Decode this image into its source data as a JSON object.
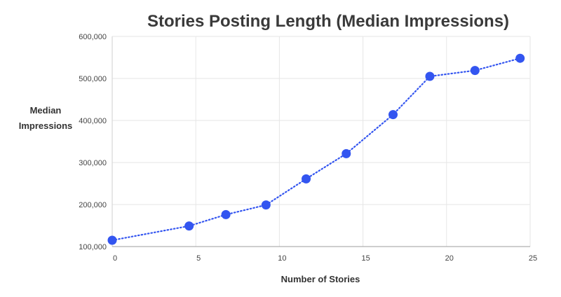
{
  "chart_data": {
    "type": "line",
    "title": "Stories Posting Length (Median Impressions)",
    "xlabel": "Number of Stories",
    "ylabel": [
      "Median",
      "Impressions"
    ],
    "xlim": [
      0,
      25
    ],
    "ylim": [
      100000,
      600000
    ],
    "xticks": [
      0,
      5,
      10,
      15,
      20,
      25
    ],
    "yticks": [
      100000,
      200000,
      300000,
      400000,
      500000,
      600000
    ],
    "ytick_labels": [
      "100,000",
      "200,000",
      "300,000",
      "400,000",
      "500,000",
      "600,000"
    ],
    "grid": true,
    "series": [
      {
        "color": "#3355f0",
        "line_style": "dotted",
        "x": [
          0,
          4.6,
          6.8,
          9.2,
          11.6,
          14,
          16.8,
          19,
          21.7,
          24.4
        ],
        "y": [
          115000,
          149000,
          176000,
          199000,
          261000,
          321000,
          414000,
          505000,
          519000,
          548000
        ]
      }
    ]
  }
}
